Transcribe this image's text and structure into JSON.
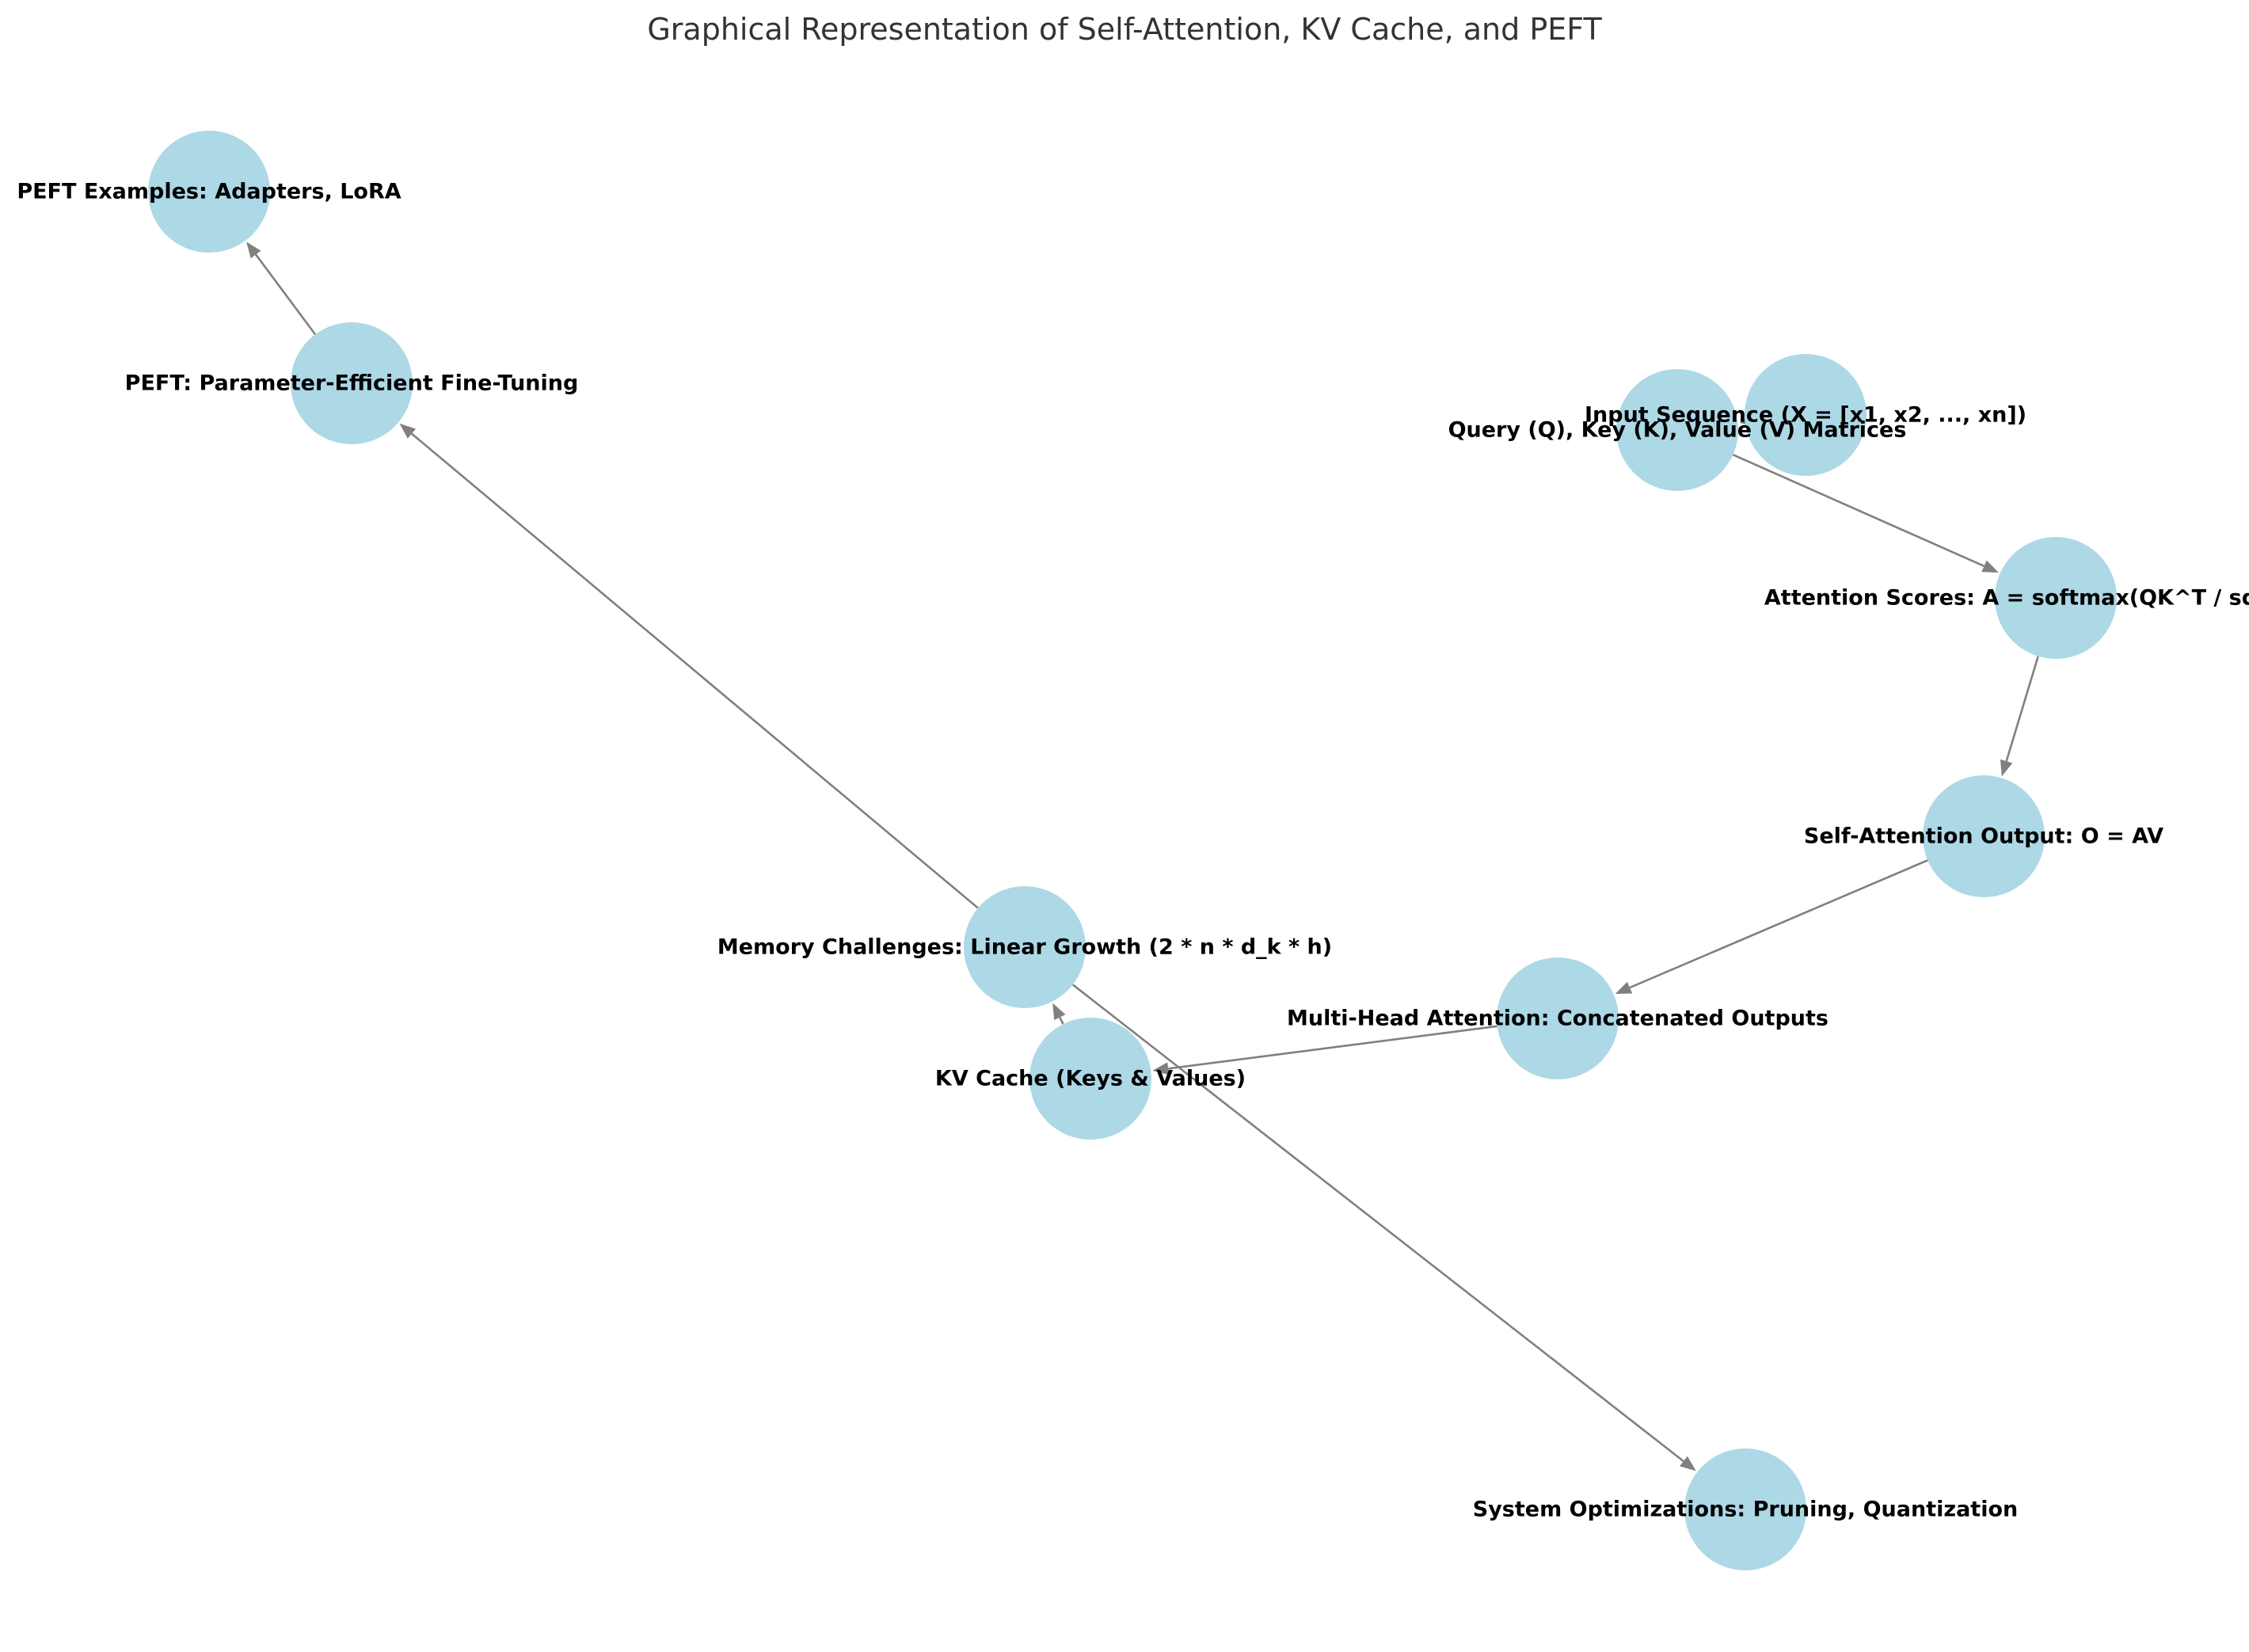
{
  "title": "Graphical Representation of Self-Attention, KV Cache, and PEFT",
  "colors": {
    "node_fill": "#add8e6",
    "edge": "#808080",
    "title": "#333333",
    "label": "#000000"
  },
  "nodes": [
    {
      "id": "input",
      "label": "Input Sequence (X = [x1, x2, ..., xn])"
    },
    {
      "id": "qkv",
      "label": "Query (Q), Key (K), Value (V) Matrices"
    },
    {
      "id": "scores",
      "label": "Attention Scores: A = softmax(QK^T / sqrt(d_k))"
    },
    {
      "id": "output",
      "label": "Self-Attention Output: O = AV"
    },
    {
      "id": "multihead",
      "label": "Multi-Head Attention: Concatenated Outputs"
    },
    {
      "id": "kvcache",
      "label": "KV Cache (Keys & Values)"
    },
    {
      "id": "memory",
      "label": "Memory Challenges: Linear Growth (2 * n * d_k * h)"
    },
    {
      "id": "sysopt",
      "label": "System Optimizations: Pruning, Quantization"
    },
    {
      "id": "peft",
      "label": "PEFT: Parameter-Efficient Fine-Tuning"
    },
    {
      "id": "peftex",
      "label": "PEFT Examples: Adapters, LoRA"
    }
  ],
  "edges": [
    {
      "from": "input",
      "to": "qkv"
    },
    {
      "from": "qkv",
      "to": "scores"
    },
    {
      "from": "scores",
      "to": "output"
    },
    {
      "from": "output",
      "to": "multihead"
    },
    {
      "from": "multihead",
      "to": "kvcache"
    },
    {
      "from": "kvcache",
      "to": "memory"
    },
    {
      "from": "memory",
      "to": "sysopt"
    },
    {
      "from": "memory",
      "to": "peft"
    },
    {
      "from": "peft",
      "to": "peftex"
    }
  ]
}
